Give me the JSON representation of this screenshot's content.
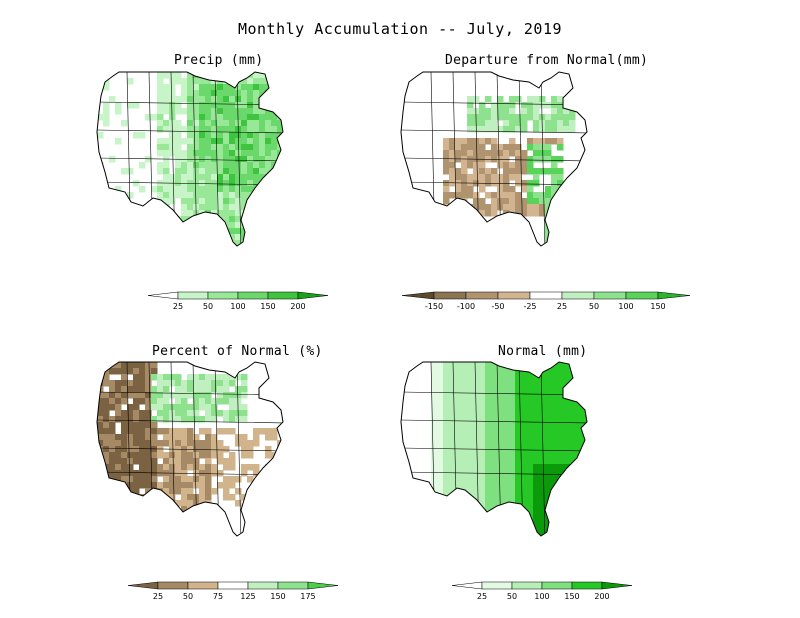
{
  "title": "Monthly Accumulation -- July, 2019",
  "panels": [
    {
      "id": "precip",
      "title": "Precip (mm)",
      "scheme": "green",
      "legend": {
        "labels": [
          "25",
          "50",
          "100",
          "150",
          "200"
        ],
        "colors": [
          "#ffffff",
          "#c8f5c8",
          "#98e898",
          "#6ad86a",
          "#3fc43f",
          "#16a416"
        ]
      }
    },
    {
      "id": "departure",
      "title": "Departure from Normal(mm)",
      "scheme": "diverge",
      "legend": {
        "labels": [
          "-150",
          "-100",
          "-50",
          "-25",
          "25",
          "50",
          "100",
          "150"
        ],
        "colors": [
          "#5c4a30",
          "#8a7452",
          "#b09470",
          "#d2b590",
          "#ffffff",
          "#c0f0c0",
          "#8ee28e",
          "#5ad35a",
          "#2bb52b"
        ]
      }
    },
    {
      "id": "percent",
      "title": "Percent of Normal (%)",
      "scheme": "percent",
      "legend": {
        "labels": [
          "25",
          "50",
          "75",
          "125",
          "150",
          "175"
        ],
        "colors": [
          "#7a6242",
          "#a68a66",
          "#d2b48c",
          "#ffffff",
          "#c0f0c0",
          "#8ee28e",
          "#4ccd4c"
        ]
      }
    },
    {
      "id": "normal",
      "title": "Normal (mm)",
      "scheme": "normal",
      "legend": {
        "labels": [
          "25",
          "50",
          "100",
          "150",
          "200"
        ],
        "colors": [
          "#ffffff",
          "#e2fae2",
          "#b6efb6",
          "#7fe07f",
          "#26c826",
          "#0a9a0a"
        ]
      }
    }
  ]
}
